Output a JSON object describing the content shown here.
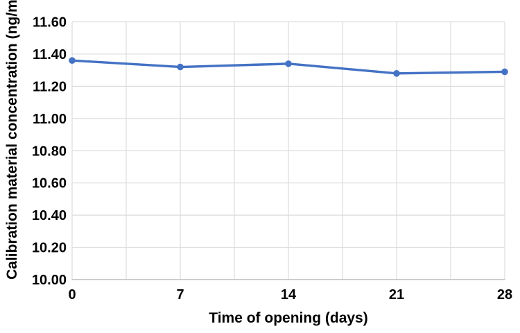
{
  "chart_data": {
    "type": "line",
    "title": "",
    "xlabel": "Time of opening (days)",
    "ylabel": "Calibration material concentration (ng/mL)",
    "x": [
      0,
      7,
      14,
      21,
      28
    ],
    "x_tick_labels": [
      "0",
      "7",
      "14",
      "21",
      "28"
    ],
    "series": [
      {
        "name": "Calibration material concentration",
        "values": [
          11.36,
          11.32,
          11.34,
          11.28,
          11.29
        ],
        "marker": "circle"
      }
    ],
    "xlim": [
      0,
      28
    ],
    "ylim": [
      10.0,
      11.6
    ],
    "x_grid_step": 3.5,
    "y_ticks": [
      {
        "value": 10.0,
        "label": "10.00"
      },
      {
        "value": 10.2,
        "label": "10.20"
      },
      {
        "value": 10.4,
        "label": "10.40"
      },
      {
        "value": 10.6,
        "label": "10.60"
      },
      {
        "value": 10.8,
        "label": "10.80"
      },
      {
        "value": 11.0,
        "label": "11.00"
      },
      {
        "value": 11.2,
        "label": "11.20"
      },
      {
        "value": 11.4,
        "label": "11.40"
      },
      {
        "value": 11.6,
        "label": "11.60"
      }
    ],
    "grid": true,
    "legend": false,
    "colors": {
      "series": "#4472C4",
      "gridline": "#DCDCDC",
      "axis_line": "#BFBFBF",
      "text": "#000000",
      "background": "#FFFFFF"
    }
  }
}
